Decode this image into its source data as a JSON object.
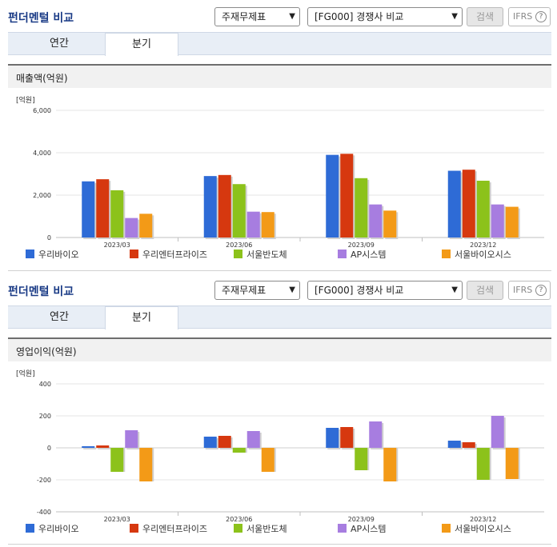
{
  "panels": [
    {
      "title": "펀더멘털 비교",
      "select1": "주재무제표",
      "select2": "[FG000] 경쟁사 비교",
      "search_label": "검색",
      "ifrs_label": "IFRS",
      "help_glyph": "?",
      "tabs": [
        {
          "label": "연간"
        },
        {
          "label": "분기"
        }
      ],
      "active_tab": 1,
      "section_title": "매출액(억원)",
      "chart_data": {
        "type": "bar",
        "unit_label": "[억원]",
        "categories": [
          "2023/03",
          "2023/06",
          "2023/09",
          "2023/12"
        ],
        "ylim": [
          0,
          6000
        ],
        "yticks": [
          0,
          2000,
          4000,
          6000
        ],
        "ytick_labels": [
          "0",
          "2,000",
          "4,000",
          "6,000"
        ],
        "grid": true,
        "legend_position": "bottom",
        "series": [
          {
            "name": "우리바이오",
            "color": "#2e6bd6",
            "values": [
              2650,
              2900,
              3900,
              3150
            ]
          },
          {
            "name": "우리엔터프라이즈",
            "color": "#d6380f",
            "values": [
              2750,
              2950,
              3950,
              3200
            ]
          },
          {
            "name": "서울반도체",
            "color": "#8cc21b",
            "values": [
              2230,
              2520,
              2800,
              2680
            ]
          },
          {
            "name": "AP시스템",
            "color": "#a77de0",
            "values": [
              920,
              1220,
              1560,
              1560
            ]
          },
          {
            "name": "서울바이오시스",
            "color": "#f39a17",
            "values": [
              1120,
              1200,
              1270,
              1450
            ]
          }
        ]
      }
    },
    {
      "title": "펀더멘털 비교",
      "select1": "주재무제표",
      "select2": "[FG000] 경쟁사 비교",
      "search_label": "검색",
      "ifrs_label": "IFRS",
      "help_glyph": "?",
      "tabs": [
        {
          "label": "연간"
        },
        {
          "label": "분기"
        }
      ],
      "active_tab": 1,
      "section_title": "영업이익(억원)",
      "chart_data": {
        "type": "bar",
        "unit_label": "[억원]",
        "categories": [
          "2023/03",
          "2023/06",
          "2023/09",
          "2023/12"
        ],
        "ylim": [
          -400,
          400
        ],
        "yticks": [
          -400,
          -200,
          0,
          200,
          400
        ],
        "ytick_labels": [
          "-400",
          "-200",
          "0",
          "200",
          "400"
        ],
        "grid": true,
        "legend_position": "bottom",
        "series": [
          {
            "name": "우리바이오",
            "color": "#2e6bd6",
            "values": [
              10,
              70,
              125,
              45
            ]
          },
          {
            "name": "우리엔터프라이즈",
            "color": "#d6380f",
            "values": [
              15,
              75,
              130,
              35
            ]
          },
          {
            "name": "서울반도체",
            "color": "#8cc21b",
            "values": [
              -150,
              -30,
              -140,
              -200
            ]
          },
          {
            "name": "AP시스템",
            "color": "#a77de0",
            "values": [
              110,
              105,
              165,
              200
            ]
          },
          {
            "name": "서울바이오시스",
            "color": "#f39a17",
            "values": [
              -210,
              -150,
              -210,
              -195
            ]
          }
        ]
      }
    }
  ]
}
